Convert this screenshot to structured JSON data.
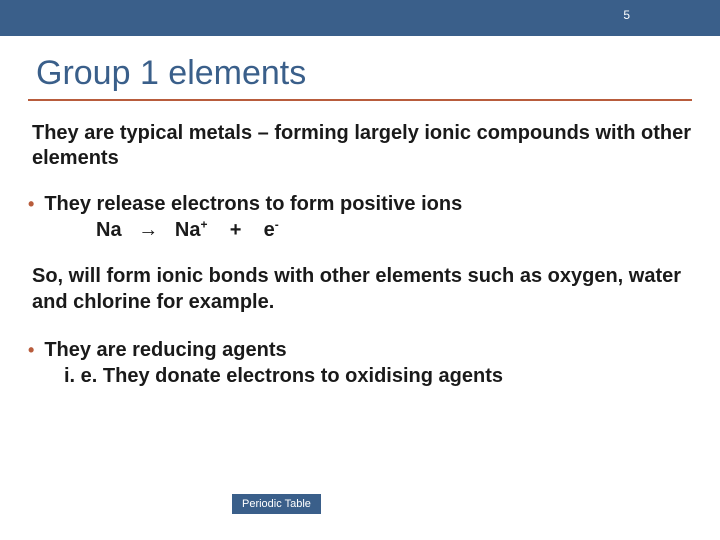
{
  "pageNumber": "5",
  "title": "Group 1 elements",
  "intro": "They are typical metals – forming largely ionic compounds with other elements",
  "bullet1": "They release electrons to form positive ions",
  "eq": {
    "na1": "Na",
    "arrow": "→",
    "na2": "Na",
    "sup1": "+",
    "plus": "+",
    "e": "e",
    "sup2": "-"
  },
  "followup": "So, will form ionic bonds with other elements such as oxygen, water and chlorine for example.",
  "bullet2": "They are reducing agents",
  "bullet2sub": "i. e. They donate electrons to oxidising agents",
  "footerButton": "Periodic Table",
  "colors": {
    "barBlue": "#3a5f8a",
    "accentOrange": "#b85c3c",
    "textDark": "#1a1a1a",
    "background": "#ffffff"
  }
}
